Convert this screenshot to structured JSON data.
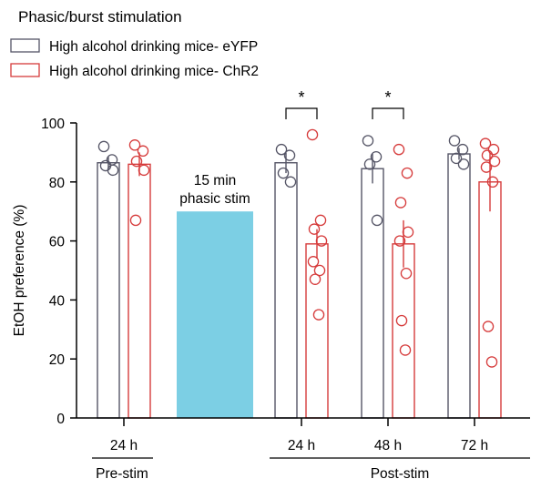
{
  "chart_data": {
    "type": "bar",
    "title": "Phasic/burst stimulation",
    "ylabel": "EtOH preference (%)",
    "xlabel": "",
    "ylim": [
      0,
      100
    ],
    "yticks": [
      0,
      20,
      40,
      60,
      80,
      100
    ],
    "grid": false,
    "legend_position": "top-left",
    "colors": {
      "eyfp": "#555566",
      "chr2": "#d63b3b",
      "stim_box": "#7ccfe4",
      "axis": "#000000"
    },
    "series": [
      {
        "key": "eyfp",
        "name": "High alcohol drinking mice- eYFP",
        "means": [
          86.5,
          86.5,
          84.5,
          89.5
        ],
        "errors": [
          2,
          3.5,
          5,
          2
        ],
        "points": [
          [
            92,
            87.5,
            85.5,
            84
          ],
          [
            91,
            89,
            83,
            80
          ],
          [
            94,
            88.5,
            86,
            67
          ],
          [
            94,
            91,
            88,
            86
          ]
        ]
      },
      {
        "key": "chr2",
        "name": "High alcohol drinking mice- ChR2",
        "means": [
          86,
          59,
          59,
          80
        ],
        "errors": [
          4,
          5,
          8,
          10
        ],
        "points": [
          [
            92.5,
            90.5,
            87,
            84,
            67
          ],
          [
            96,
            67,
            64,
            60,
            53,
            50,
            47,
            35
          ],
          [
            91,
            83,
            73,
            63,
            60,
            49,
            33,
            23
          ],
          [
            93,
            91,
            89,
            87,
            85,
            80,
            31,
            19
          ]
        ]
      }
    ],
    "groups": [
      {
        "label": "24 h",
        "section": "pre"
      },
      {
        "label": "24 h",
        "section": "post"
      },
      {
        "label": "48 h",
        "section": "post"
      },
      {
        "label": "72 h",
        "section": "post"
      }
    ],
    "sections": {
      "pre": "Pre-stim",
      "post": "Post-stim"
    },
    "stim_block": {
      "line1": "15 min",
      "line2": "phasic stim",
      "value": 70
    },
    "significance": [
      {
        "group_index": 1,
        "label": "*"
      },
      {
        "group_index": 2,
        "label": "*"
      }
    ]
  }
}
